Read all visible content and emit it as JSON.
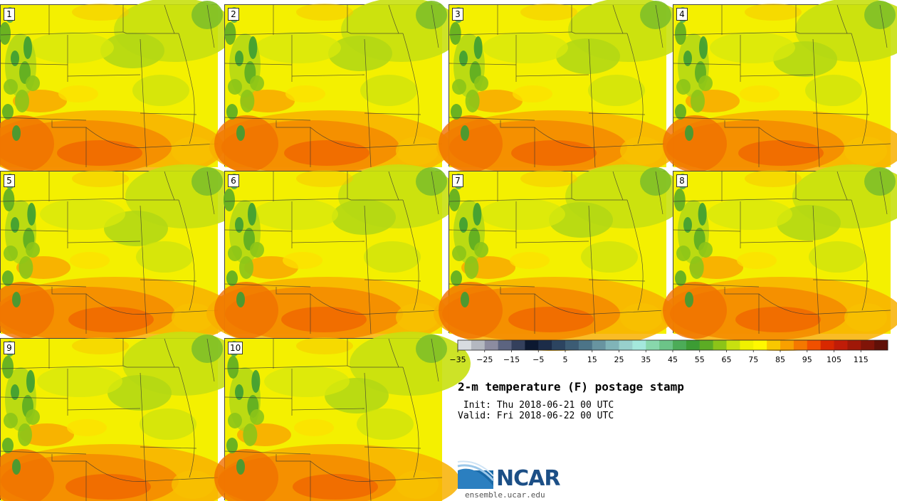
{
  "panels": [
    {
      "label": "1"
    },
    {
      "label": "2"
    },
    {
      "label": "3"
    },
    {
      "label": "4"
    },
    {
      "label": "5"
    },
    {
      "label": "6"
    },
    {
      "label": "7"
    },
    {
      "label": "8"
    },
    {
      "label": "9"
    },
    {
      "label": "10"
    }
  ],
  "colorbar": {
    "colors": [
      "#d8dce0",
      "#b4b8c0",
      "#8c8ca0",
      "#5c6480",
      "#34405c",
      "#0c1830",
      "#1c2c48",
      "#2c4460",
      "#3c5c74",
      "#4c7488",
      "#6894a0",
      "#80b4b8",
      "#98d0cc",
      "#a4e8dc",
      "#88d8ac",
      "#6cc488",
      "#4cac58",
      "#3c9c34",
      "#5cac24",
      "#8cc418",
      "#c8e010",
      "#f0f000",
      "#fff800",
      "#f8c800",
      "#f8a000",
      "#f47800",
      "#f05000",
      "#d82800",
      "#c01c08",
      "#a01808",
      "#801408",
      "#601008"
    ],
    "tick_labels": [
      "−35",
      "−25",
      "−15",
      "−5",
      "5",
      "15",
      "25",
      "35",
      "45",
      "55",
      "65",
      "75",
      "85",
      "95",
      "105",
      "115"
    ]
  },
  "title": "2-m temperature (F) postage stamp",
  "init_line": " Init: Thu 2018-06-21 00 UTC",
  "valid_line": "Valid: Fri 2018-06-22 00 UTC",
  "logo": {
    "name": "NCAR",
    "url": "ensemble.ucar.edu"
  }
}
